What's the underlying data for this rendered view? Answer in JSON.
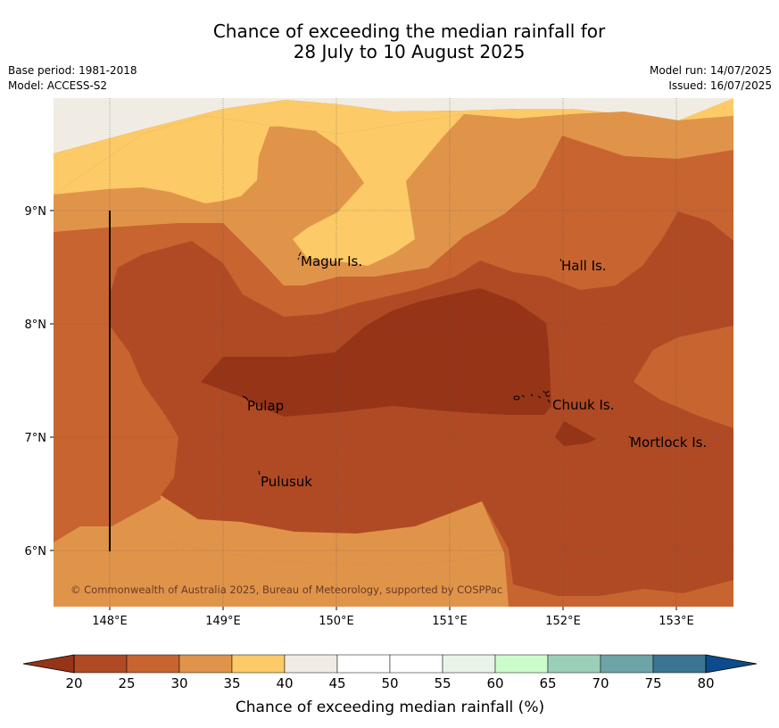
{
  "title_line1": "Chance of exceeding the median rainfall for",
  "title_line2": "28 July to 10 August 2025",
  "base_period": "Base period: 1981-2018",
  "model": "Model: ACCESS-S2",
  "model_run": "Model run: 14/07/2025",
  "issued": "Issued: 16/07/2025",
  "copyright": "© Commonwealth of Australia 2025, Bureau of Meteorology, supported by COSPPac",
  "map": {
    "lon_labels": [
      "148°E",
      "149°E",
      "150°E",
      "151°E",
      "152°E",
      "153°E"
    ],
    "lat_labels": [
      "9°N",
      "8°N",
      "7°N",
      "6°N"
    ],
    "islands": [
      "Magur Is.",
      "Hall Is.",
      "Pulap",
      "Chuuk Is.",
      "Mortlock Is.",
      "Pulusuk"
    ]
  },
  "colorbar": {
    "label": "Chance of exceeding median rainfall (%)",
    "ticks": [
      "20",
      "25",
      "30",
      "35",
      "40",
      "45",
      "50",
      "55",
      "60",
      "65",
      "70",
      "75",
      "80"
    ],
    "colors": [
      "#b04a24",
      "#c86430",
      "#e0944a",
      "#fcca66",
      "#f0ece4",
      "#ffffff",
      "#ffffff",
      "#e8f4e8",
      "#ccfccc",
      "#9ccfb8",
      "#6ca4a8",
      "#3c7494"
    ],
    "under_color": "#963418",
    "over_color": "#0c4c8c"
  }
}
